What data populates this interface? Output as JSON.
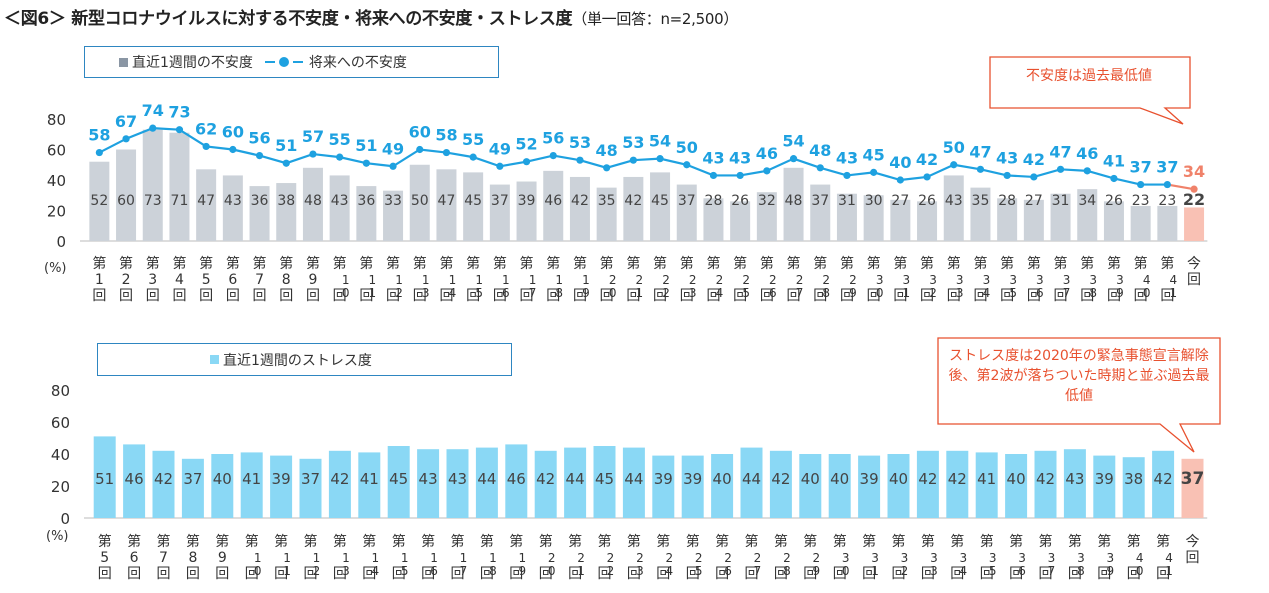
{
  "page": {
    "title_main": "＜図6＞ 新型コロナウイルスに対する不安度・将来への不安度・ストレス度",
    "title_sub": "（単一回答：n=2,500）"
  },
  "colors": {
    "anxiety_bar": "#ccd2d9",
    "future_line": "#1ea1e0",
    "stress_bar": "#8ad8f5",
    "latest_bar": "#f9c1b4",
    "latest_text": "#f0826a",
    "callout": "#e8512f",
    "legend_border": "#2e86c1"
  },
  "chart_data": [
    {
      "type": "bar",
      "id": "anxiety",
      "title": "",
      "legend": {
        "bar_label": "直近1週間の不安度",
        "line_label": "将来への不安度"
      },
      "unit_label": "(%)",
      "ylim": [
        0,
        80
      ],
      "yticks": [
        0,
        20,
        40,
        60,
        80
      ],
      "categories": [
        "第1回",
        "第2回",
        "第3回",
        "第4回",
        "第5回",
        "第6回",
        "第7回",
        "第8回",
        "第9回",
        "第10回",
        "第11回",
        "第12回",
        "第13回",
        "第14回",
        "第15回",
        "第16回",
        "第17回",
        "第18回",
        "第19回",
        "第20回",
        "第21回",
        "第22回",
        "第23回",
        "第24回",
        "第25回",
        "第26回",
        "第27回",
        "第28回",
        "第29回",
        "第30回",
        "第31回",
        "第32回",
        "第33回",
        "第34回",
        "第35回",
        "第36回",
        "第37回",
        "第38回",
        "第39回",
        "第40回",
        "第41回",
        "今回"
      ],
      "series": [
        {
          "name": "直近1週間の不安度",
          "kind": "bar",
          "values": [
            52,
            60,
            73,
            71,
            47,
            43,
            36,
            38,
            48,
            43,
            36,
            33,
            50,
            47,
            45,
            37,
            39,
            46,
            42,
            35,
            42,
            45,
            37,
            28,
            26,
            32,
            48,
            37,
            31,
            30,
            27,
            26,
            43,
            35,
            28,
            27,
            31,
            34,
            26,
            23,
            23,
            22
          ]
        },
        {
          "name": "将来への不安度",
          "kind": "line",
          "values": [
            58,
            67,
            74,
            73,
            62,
            60,
            56,
            51,
            57,
            55,
            51,
            49,
            60,
            58,
            55,
            49,
            52,
            56,
            53,
            48,
            53,
            54,
            50,
            43,
            43,
            46,
            54,
            48,
            43,
            45,
            40,
            42,
            50,
            47,
            43,
            42,
            47,
            46,
            41,
            37,
            37,
            34
          ]
        }
      ],
      "callout": "不安度は過去最低値"
    },
    {
      "type": "bar",
      "id": "stress",
      "title": "",
      "legend": {
        "bar_label": "直近1週間のストレス度"
      },
      "unit_label": "(%)",
      "ylim": [
        0,
        80
      ],
      "yticks": [
        0,
        20,
        40,
        60,
        80
      ],
      "categories": [
        "第5回",
        "第6回",
        "第7回",
        "第8回",
        "第9回",
        "第10回",
        "第11回",
        "第12回",
        "第13回",
        "第14回",
        "第15回",
        "第16回",
        "第17回",
        "第18回",
        "第19回",
        "第20回",
        "第21回",
        "第22回",
        "第23回",
        "第24回",
        "第25回",
        "第26回",
        "第27回",
        "第28回",
        "第29回",
        "第30回",
        "第31回",
        "第32回",
        "第33回",
        "第34回",
        "第35回",
        "第36回",
        "第37回",
        "第38回",
        "第39回",
        "第40回",
        "第41回",
        "今回"
      ],
      "series": [
        {
          "name": "直近1週間のストレス度",
          "kind": "bar",
          "values": [
            51,
            46,
            42,
            37,
            40,
            41,
            39,
            37,
            42,
            41,
            45,
            43,
            43,
            44,
            46,
            42,
            44,
            45,
            44,
            39,
            39,
            40,
            44,
            42,
            40,
            40,
            39,
            40,
            42,
            42,
            41,
            40,
            42,
            43,
            39,
            38,
            42,
            37
          ]
        }
      ],
      "callout": "ストレス度は2020年の緊急事態宣言解除後、第2波が落ちついた時期と並ぶ過去最低値"
    }
  ]
}
